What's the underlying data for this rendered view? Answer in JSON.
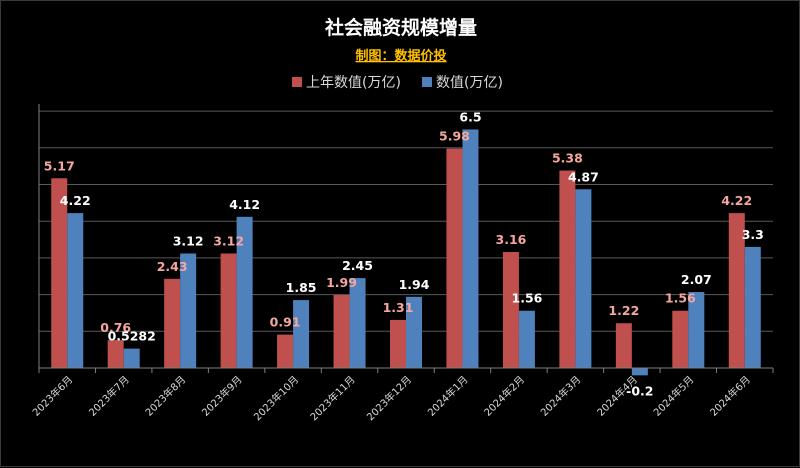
{
  "chart_data": {
    "type": "bar",
    "title": "社会融资规模增量",
    "subtitle": "制图：数据价投",
    "xlabel": "",
    "ylabel": "",
    "ylim": [
      -0.5,
      7.5
    ],
    "grid": true,
    "legend_position": "top",
    "categories": [
      "2023年6月",
      "2023年7月",
      "2023年8月",
      "2023年9月",
      "2023年10月",
      "2023年11月",
      "2023年12月",
      "2024年1月",
      "2024年2月",
      "2024年3月",
      "2024年4月",
      "2024年5月",
      "2024年6月"
    ],
    "series": [
      {
        "name": "上年数值(万亿)",
        "color": "#c0504d",
        "label_color": "#f4a7a0",
        "values": [
          5.17,
          0.76,
          2.43,
          3.12,
          0.91,
          1.99,
          1.31,
          5.98,
          3.16,
          5.38,
          1.22,
          1.56,
          4.22
        ],
        "labels": [
          "5.17",
          "0.76",
          "2.43",
          "3.12",
          "0.91",
          "1.99",
          "1.31",
          "5.98",
          "3.16",
          "5.38",
          "1.22",
          "1.56",
          "4.22"
        ]
      },
      {
        "name": "数值(万亿)",
        "color": "#4f81bd",
        "label_color": "#ffffff",
        "values": [
          4.22,
          0.5282,
          3.12,
          4.12,
          1.85,
          2.45,
          1.94,
          6.5,
          1.56,
          4.87,
          -0.2,
          2.07,
          3.3
        ],
        "labels": [
          "4.22",
          "0.5282",
          "3.12",
          "4.12",
          "1.85",
          "2.45",
          "1.94",
          "6.5",
          "1.56",
          "4.87",
          "-0.2",
          "2.07",
          "3.3"
        ]
      }
    ],
    "colors": {
      "background": "#000000",
      "title": "#ffffff",
      "subtitle": "#ffc000",
      "gridline": "#595959",
      "axis": "#7f7f7f",
      "tick_label": "#d9d9d9",
      "legend_text": "#d9d9d9"
    }
  }
}
